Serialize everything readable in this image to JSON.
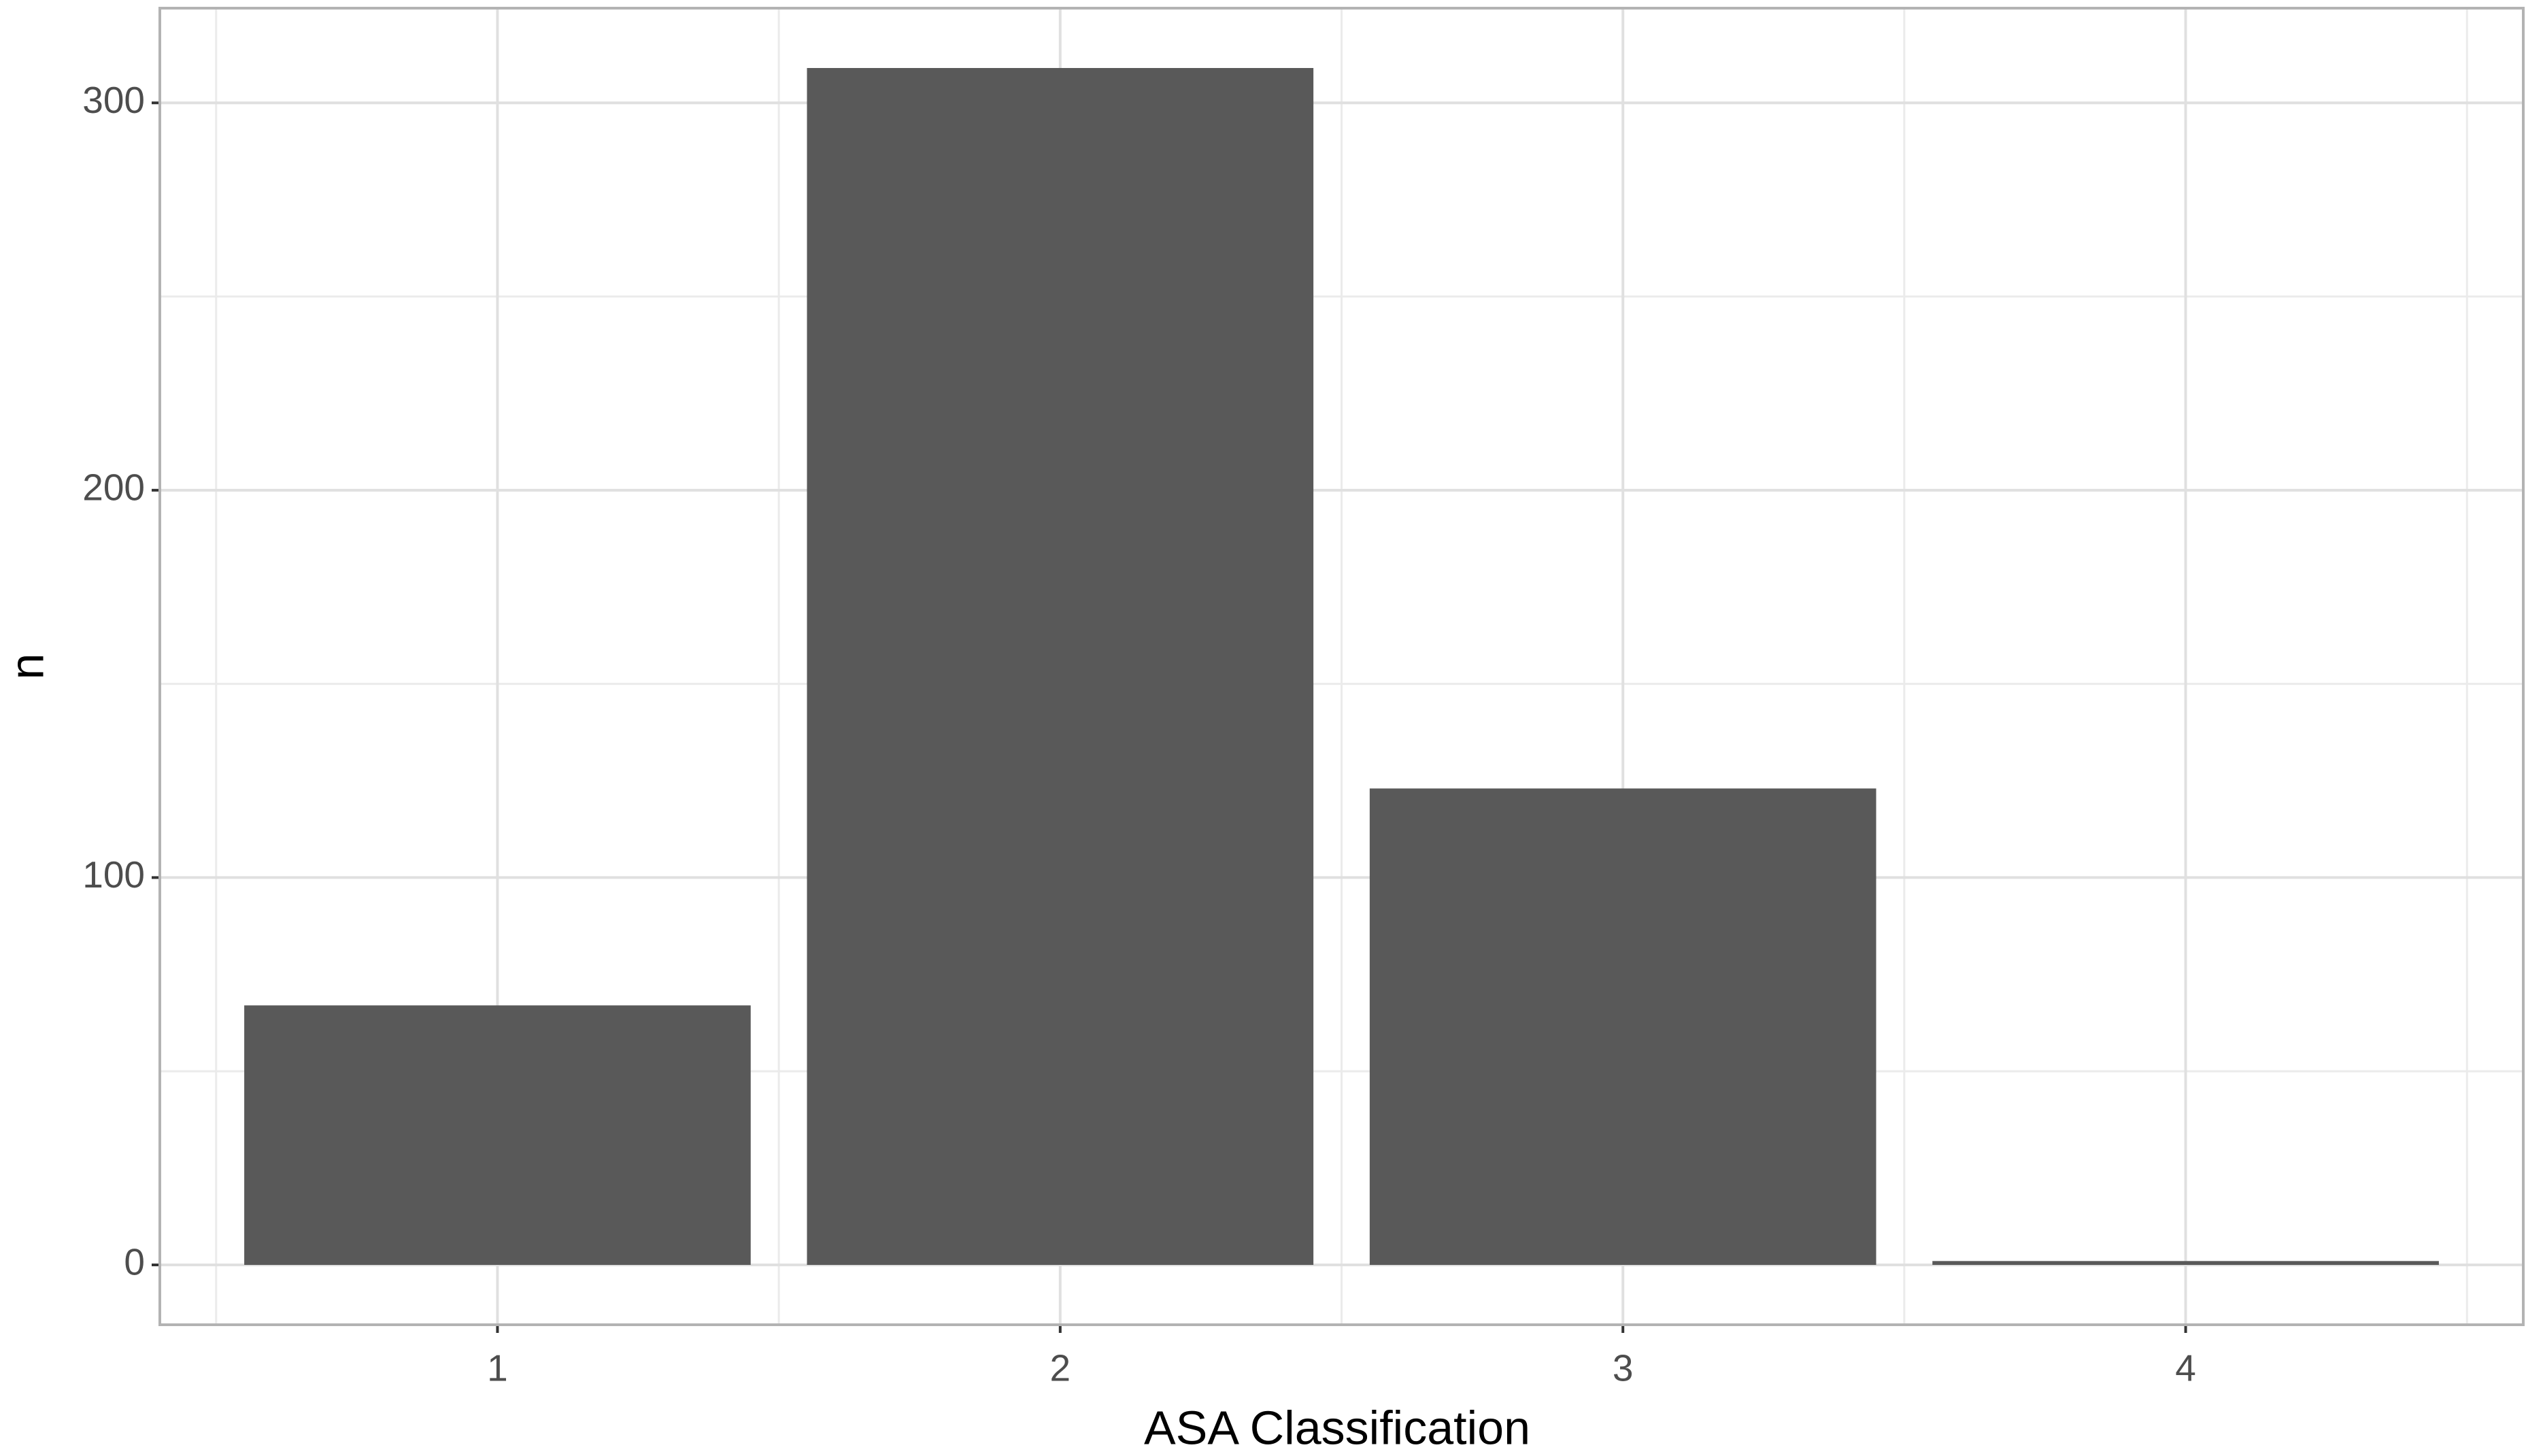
{
  "chart_data": {
    "type": "bar",
    "x_label": "ASA Classification",
    "y_label": "n",
    "categories": [
      "1",
      "2",
      "3",
      "4"
    ],
    "values": [
      67,
      309,
      123,
      1
    ],
    "color": "#595959",
    "ylim": [
      -15.45,
      324.45
    ],
    "yticks": [
      0,
      100,
      200,
      300
    ],
    "y_minor_ticks": [
      50,
      150,
      250
    ],
    "grid": true
  }
}
